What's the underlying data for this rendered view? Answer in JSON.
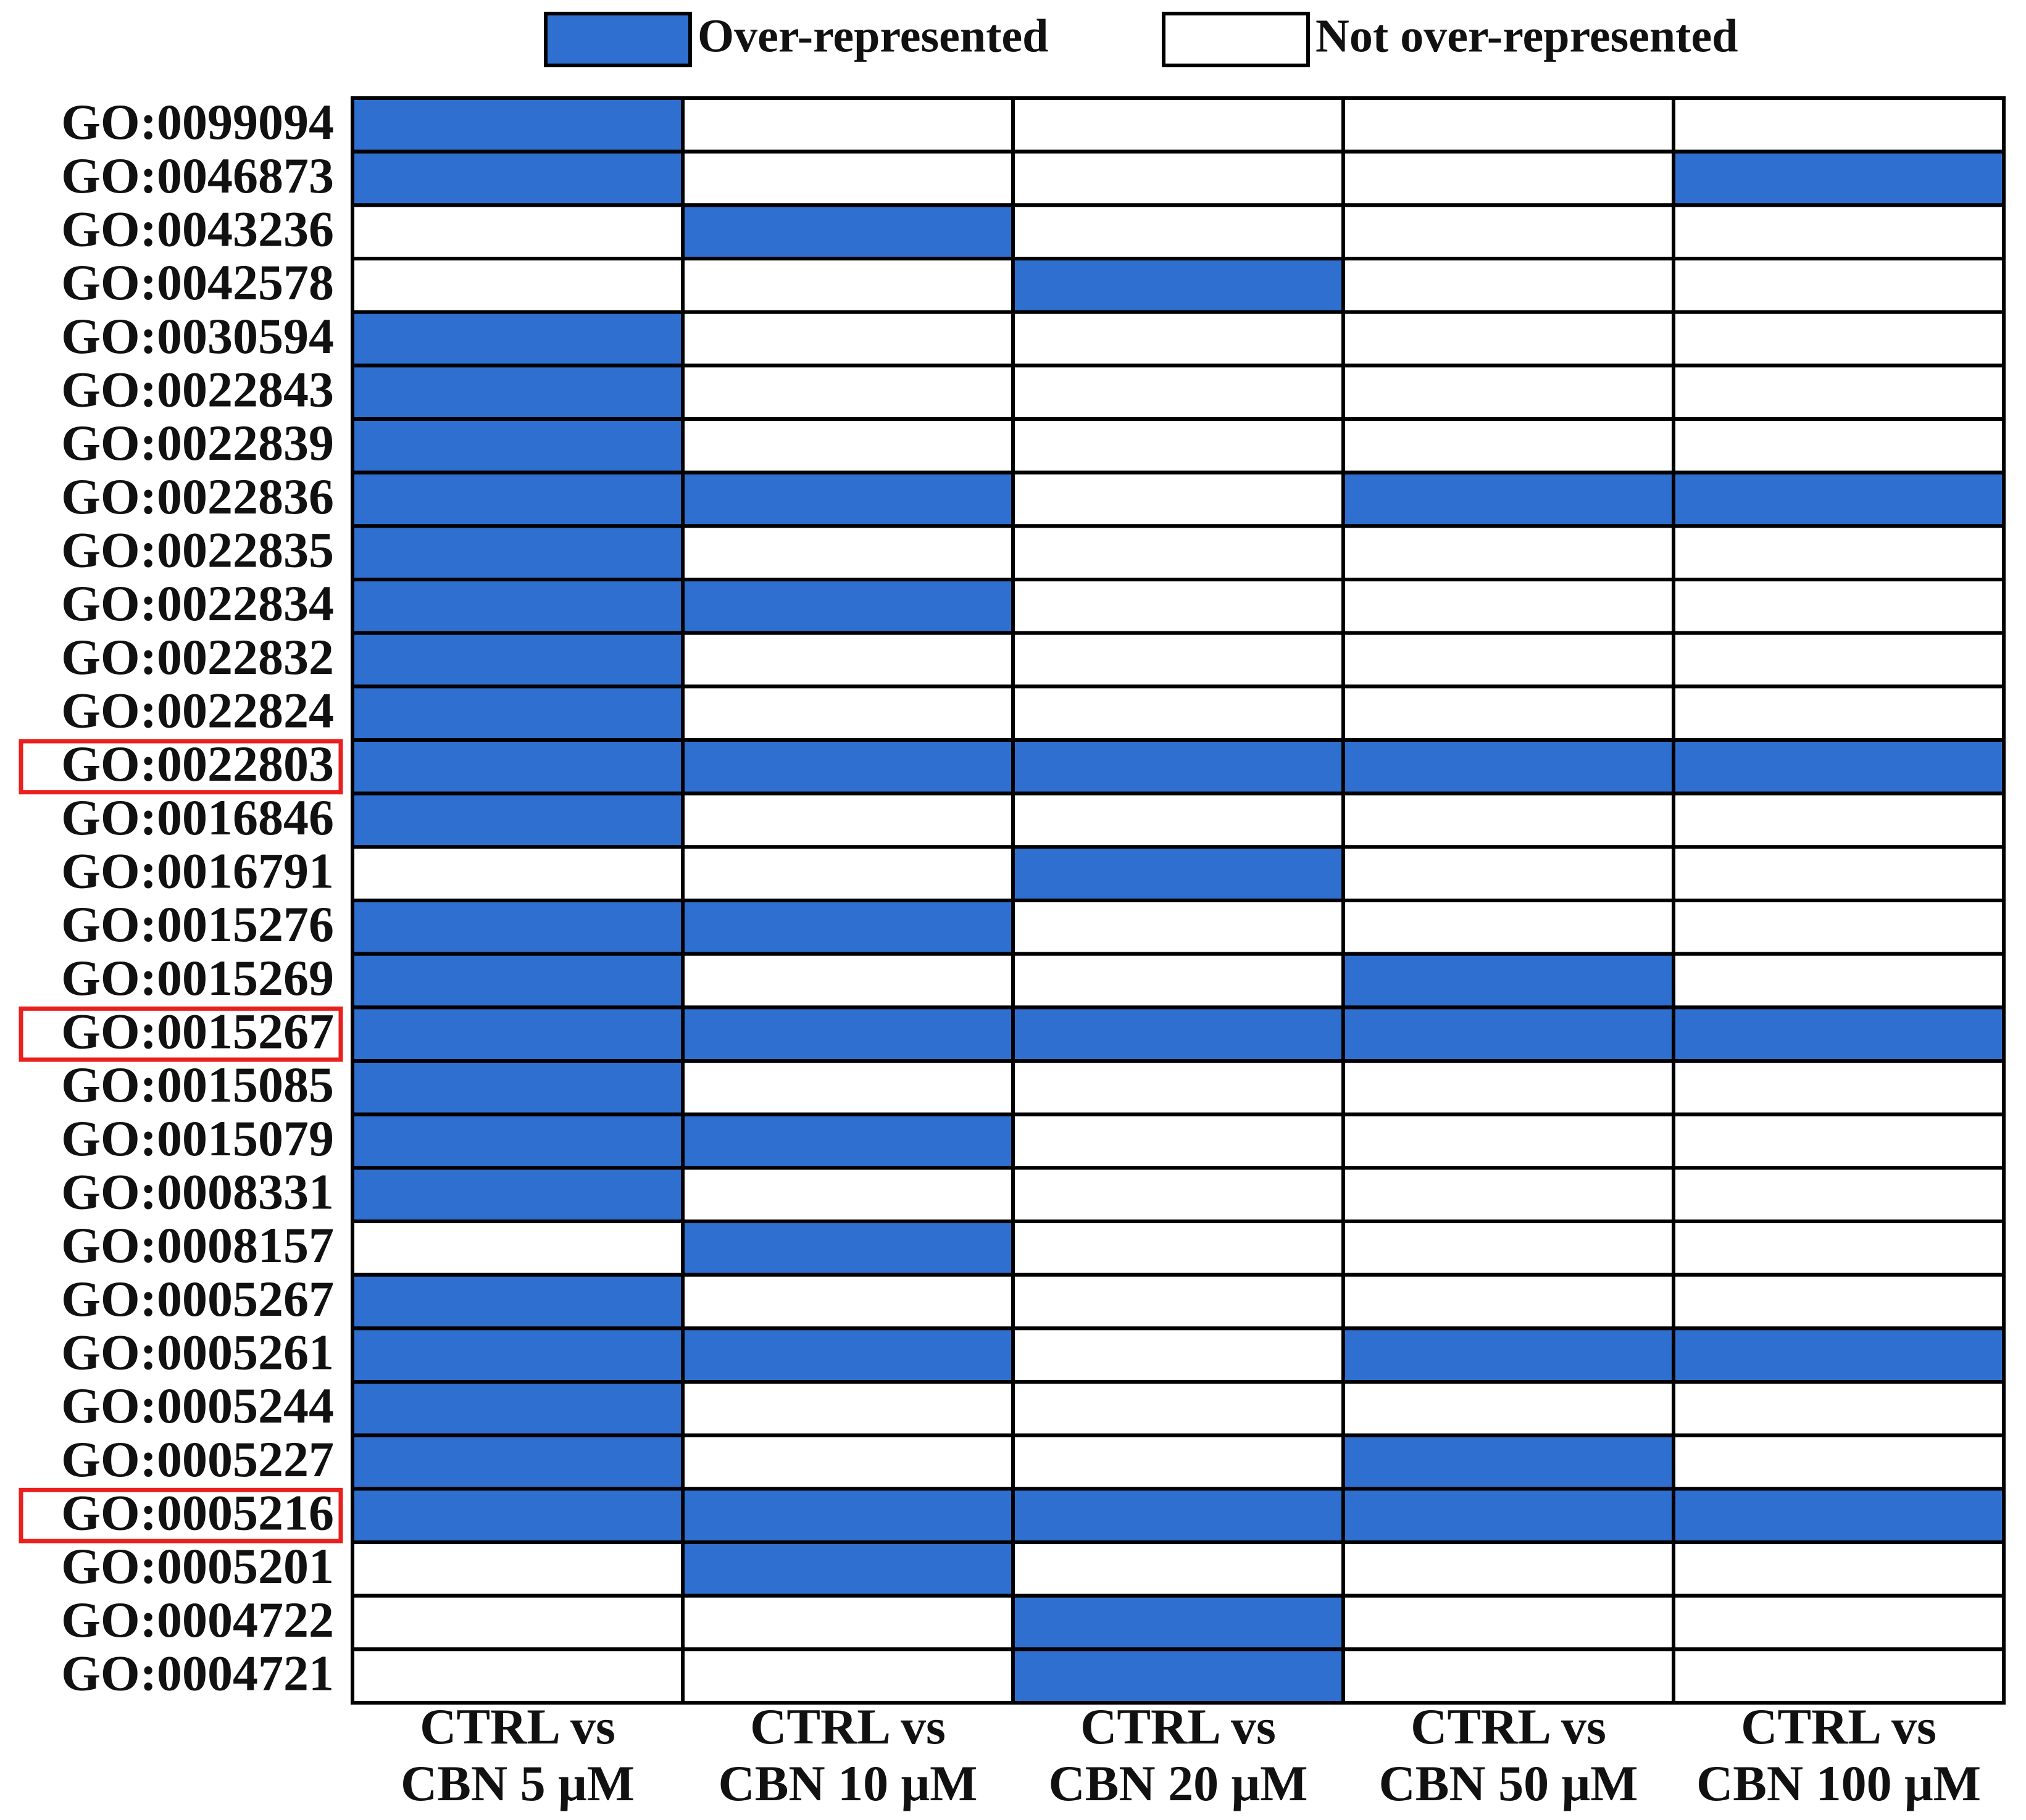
{
  "chart_data": {
    "type": "heatmap",
    "legend": [
      {
        "name": "Over-represented",
        "color": "#2f6fcf"
      },
      {
        "name": "Not over-represented",
        "color": "#ffffff"
      }
    ],
    "rows": [
      "GO:0099094",
      "GO:0046873",
      "GO:0043236",
      "GO:0042578",
      "GO:0030594",
      "GO:0022843",
      "GO:0022839",
      "GO:0022836",
      "GO:0022835",
      "GO:0022834",
      "GO:0022832",
      "GO:0022824",
      "GO:0022803",
      "GO:0016846",
      "GO:0016791",
      "GO:0015276",
      "GO:0015269",
      "GO:0015267",
      "GO:0015085",
      "GO:0015079",
      "GO:0008331",
      "GO:0008157",
      "GO:0005267",
      "GO:0005261",
      "GO:0005244",
      "GO:0005227",
      "GO:0005216",
      "GO:0005201",
      "GO:0004722",
      "GO:0004721"
    ],
    "columns": [
      [
        "CTRL vs",
        "CBN 5 μM"
      ],
      [
        "CTRL vs",
        "CBN 10 μM"
      ],
      [
        "CTRL vs",
        "CBN 20 μM"
      ],
      [
        "CTRL vs",
        "CBN 50 μM"
      ],
      [
        "CTRL vs",
        "CBN 100 μM"
      ]
    ],
    "values": [
      [
        1,
        0,
        0,
        0,
        0
      ],
      [
        1,
        0,
        0,
        0,
        1
      ],
      [
        0,
        1,
        0,
        0,
        0
      ],
      [
        0,
        0,
        1,
        0,
        0
      ],
      [
        1,
        0,
        0,
        0,
        0
      ],
      [
        1,
        0,
        0,
        0,
        0
      ],
      [
        1,
        0,
        0,
        0,
        0
      ],
      [
        1,
        1,
        0,
        1,
        1
      ],
      [
        1,
        0,
        0,
        0,
        0
      ],
      [
        1,
        1,
        0,
        0,
        0
      ],
      [
        1,
        0,
        0,
        0,
        0
      ],
      [
        1,
        0,
        0,
        0,
        0
      ],
      [
        1,
        1,
        1,
        1,
        1
      ],
      [
        1,
        0,
        0,
        0,
        0
      ],
      [
        0,
        0,
        1,
        0,
        0
      ],
      [
        1,
        1,
        0,
        0,
        0
      ],
      [
        1,
        0,
        0,
        1,
        0
      ],
      [
        1,
        1,
        1,
        1,
        1
      ],
      [
        1,
        0,
        0,
        0,
        0
      ],
      [
        1,
        1,
        0,
        0,
        0
      ],
      [
        1,
        0,
        0,
        0,
        0
      ],
      [
        0,
        1,
        0,
        0,
        0
      ],
      [
        1,
        0,
        0,
        0,
        0
      ],
      [
        1,
        1,
        0,
        1,
        1
      ],
      [
        1,
        0,
        0,
        0,
        0
      ],
      [
        1,
        0,
        0,
        1,
        0
      ],
      [
        1,
        1,
        1,
        1,
        1
      ],
      [
        0,
        1,
        0,
        0,
        0
      ],
      [
        0,
        0,
        1,
        0,
        0
      ],
      [
        0,
        0,
        1,
        0,
        0
      ]
    ],
    "highlighted_rows": [
      12,
      17,
      26
    ],
    "highlight_color": "#e8201e"
  }
}
